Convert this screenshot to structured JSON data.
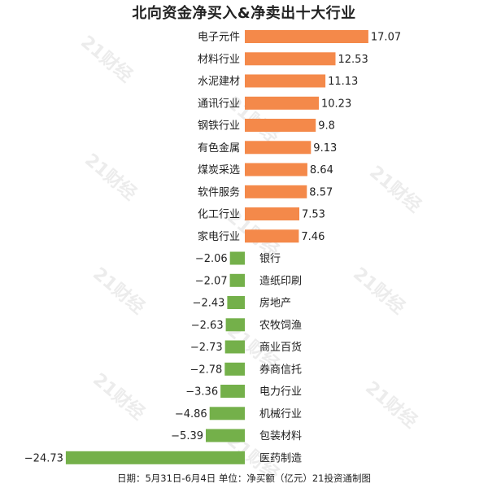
{
  "title": "北向资金净买入&净卖出十大行业",
  "footer": "日期：5月31日-6月4日 单位：净买额（亿元）21投资通制图",
  "watermark": "21财经",
  "colors": {
    "positive": "#f4894a",
    "negative": "#74b04a"
  },
  "chart_data": {
    "type": "bar",
    "orientation": "horizontal",
    "categories": [
      "电子元件",
      "材料行业",
      "水泥建材",
      "通讯行业",
      "钢铁行业",
      "有色金属",
      "煤炭采选",
      "软件服务",
      "化工行业",
      "家电行业",
      "银行",
      "造纸印刷",
      "房地产",
      "农牧饲渔",
      "商业百货",
      "券商信托",
      "电力行业",
      "机械行业",
      "包装材料",
      "医药制造"
    ],
    "values": [
      17.07,
      12.53,
      11.13,
      10.23,
      9.8,
      9.13,
      8.64,
      8.57,
      7.53,
      7.46,
      -2.06,
      -2.07,
      -2.43,
      -2.63,
      -2.73,
      -2.78,
      -3.36,
      -4.86,
      -5.39,
      -24.73
    ],
    "value_labels": [
      "17.07",
      "12.53",
      "11.13",
      "10.23",
      "9.8",
      "9.13",
      "8.64",
      "8.57",
      "7.53",
      "7.46",
      "−2.06",
      "−2.07",
      "−2.43",
      "−2.63",
      "−2.73",
      "−2.78",
      "−3.36",
      "−4.86",
      "−5.39",
      "−24.73"
    ],
    "title": "北向资金净买入&净卖出十大行业",
    "xlabel": "",
    "ylabel": "",
    "xlim": [
      -24.73,
      17.07
    ],
    "grid": false,
    "legend": false
  }
}
